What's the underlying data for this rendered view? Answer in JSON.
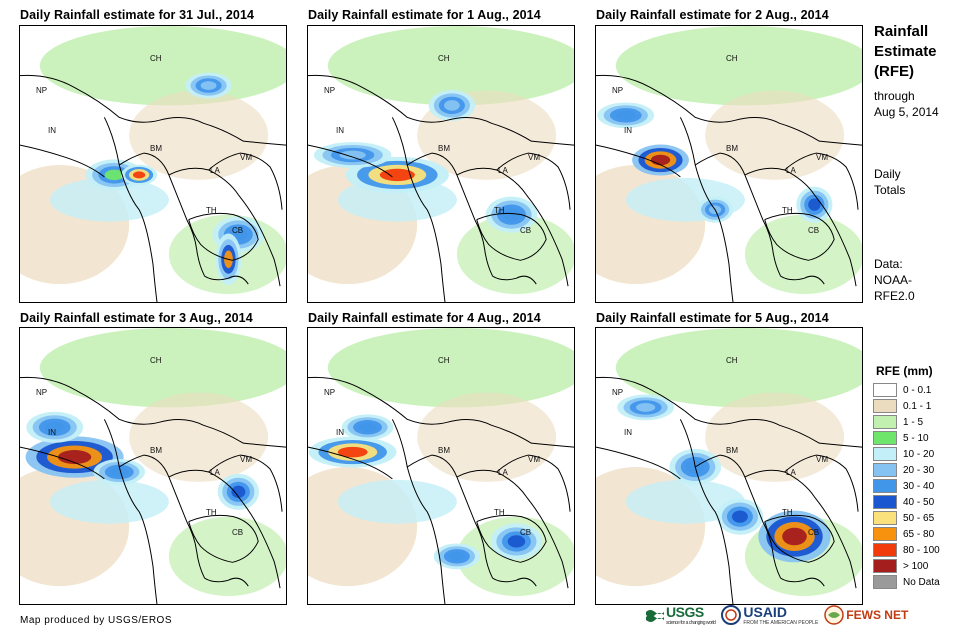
{
  "panels": [
    {
      "title": "Daily Rainfall estimate for 31 Jul., 2014"
    },
    {
      "title": "Daily Rainfall estimate for 1 Aug., 2014"
    },
    {
      "title": "Daily Rainfall estimate for 2 Aug., 2014"
    },
    {
      "title": "Daily Rainfall estimate for 3 Aug., 2014"
    },
    {
      "title": "Daily Rainfall estimate for 4 Aug., 2014"
    },
    {
      "title": "Daily Rainfall estimate for 5 Aug., 2014"
    }
  ],
  "country_labels": [
    "CH",
    "NP",
    "IN",
    "BM",
    "LA",
    "VM",
    "TH",
    "CB"
  ],
  "sidebar": {
    "title_line1": "Rainfall",
    "title_line2": "Estimate",
    "title_line3": "(RFE)",
    "through_line1": "through",
    "through_line2": "Aug 5, 2014",
    "totals_line1": "Daily",
    "totals_line2": "Totals",
    "data_line1": "Data:",
    "data_line2": "NOAA-",
    "data_line3": "RFE2.0"
  },
  "legend": {
    "title": "RFE (mm)",
    "items": [
      {
        "label": "0 - 0.1",
        "color": "#ffffff"
      },
      {
        "label": "0.1 - 1",
        "color": "#ecdcbf"
      },
      {
        "label": "1 - 5",
        "color": "#c2f0b0"
      },
      {
        "label": "5 - 10",
        "color": "#6fe66b"
      },
      {
        "label": "10 - 20",
        "color": "#c3eff8"
      },
      {
        "label": "20 - 30",
        "color": "#87c3f2"
      },
      {
        "label": "30 - 40",
        "color": "#4196ea"
      },
      {
        "label": "40 - 50",
        "color": "#1a56cf"
      },
      {
        "label": "50 - 65",
        "color": "#fbe17b"
      },
      {
        "label": "65 - 80",
        "color": "#f7920f"
      },
      {
        "label": "80 - 100",
        "color": "#f23b0b"
      },
      {
        "label": "> 100",
        "color": "#a41e1e"
      },
      {
        "label": "No Data",
        "color": "#9a9a9a"
      }
    ]
  },
  "footer": {
    "credit": "Map produced by USGS/EROS"
  },
  "logos": {
    "usgs": "USGS",
    "usgs_tagline": "science for a changing world",
    "usaid": "USAID",
    "usaid_tagline": "FROM THE AMERICAN PEOPLE",
    "fews": "FEWS NET"
  }
}
